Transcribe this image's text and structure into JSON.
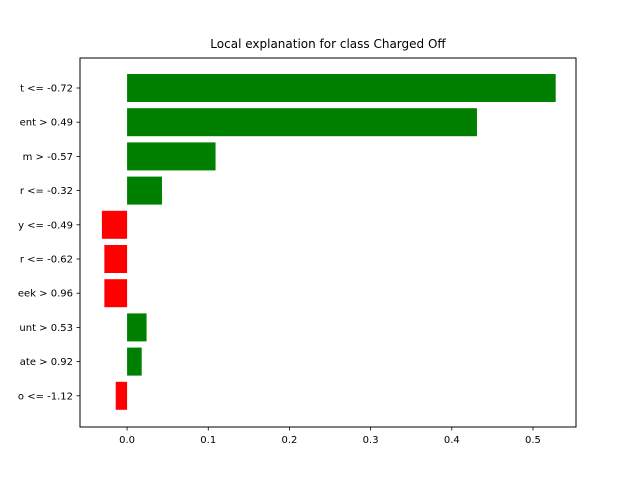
{
  "chart_data": {
    "type": "bar",
    "orientation": "horizontal",
    "title": "Local explanation for class Charged Off",
    "xlabel": "",
    "ylabel": "",
    "xlim": [
      -0.058,
      0.553
    ],
    "x_ticks": [
      0.0,
      0.1,
      0.2,
      0.3,
      0.4,
      0.5
    ],
    "x_tick_labels": [
      "0.0",
      "0.1",
      "0.2",
      "0.3",
      "0.4",
      "0.5"
    ],
    "categories": [
      "t <= -0.72",
      "ent > 0.49",
      "m > -0.57",
      "r <= -0.32",
      "y <= -0.49",
      "r <= -0.62",
      "eek > 0.96",
      "unt > 0.53",
      "ate > 0.92",
      "o <= -1.12"
    ],
    "values": [
      0.528,
      0.431,
      0.109,
      0.043,
      -0.031,
      -0.028,
      -0.028,
      0.024,
      0.018,
      -0.014
    ],
    "positive_color": "#008000",
    "negative_color": "#ff0000",
    "grid": false,
    "legend": "none"
  }
}
